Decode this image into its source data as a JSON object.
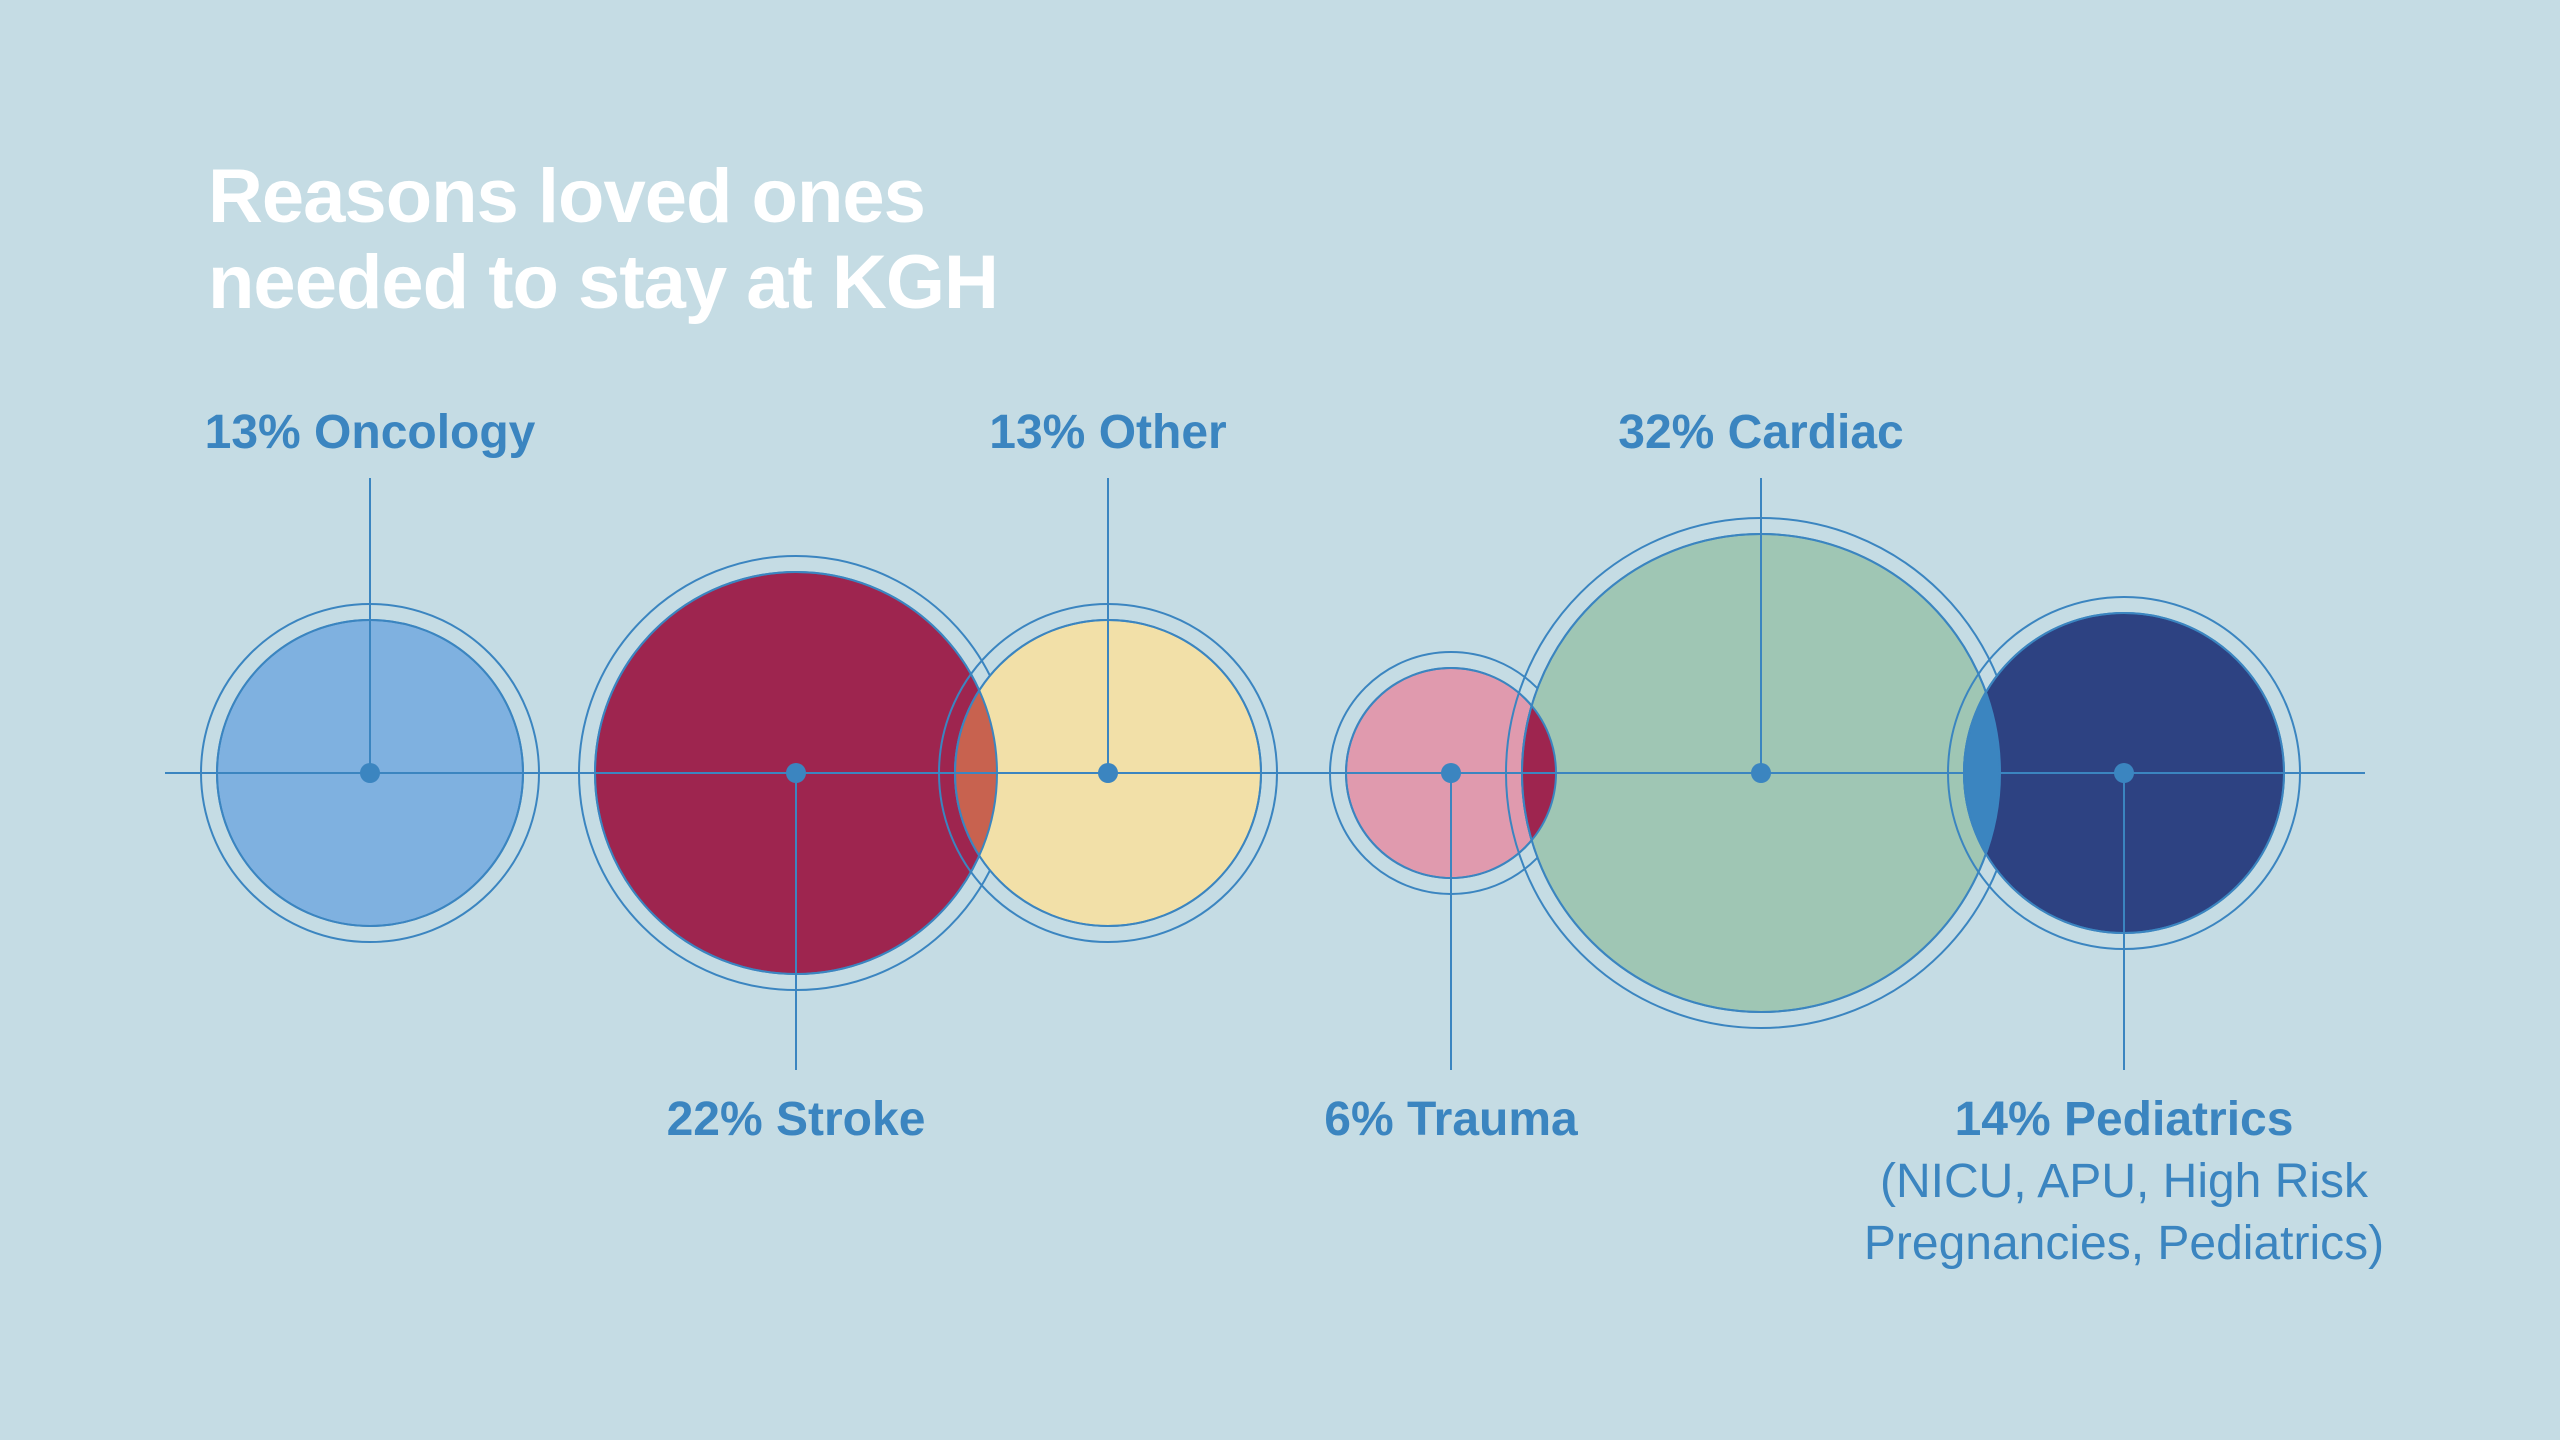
{
  "chart_data": {
    "type": "bubble",
    "title_lines": [
      "Reasons loved ones",
      "needed to stay at KGH"
    ],
    "unit": "%",
    "categories": [
      {
        "name": "Oncology",
        "value": 13,
        "label": "13% Oncology",
        "color": "#7fb1e0",
        "label_side": "top",
        "sublabel": []
      },
      {
        "name": "Stroke",
        "value": 22,
        "label": "22% Stroke",
        "color": "#9e254f",
        "label_side": "bottom",
        "sublabel": []
      },
      {
        "name": "Other",
        "value": 13,
        "label": "13% Other",
        "color": "#f2e0a8",
        "label_side": "top",
        "sublabel": []
      },
      {
        "name": "Trauma",
        "value": 6,
        "label": "6% Trauma",
        "color": "#e09aae",
        "label_side": "bottom",
        "sublabel": []
      },
      {
        "name": "Cardiac",
        "value": 32,
        "label": "32% Cardiac",
        "color": "#9fc6b4",
        "label_side": "top",
        "sublabel": []
      },
      {
        "name": "Pediatrics",
        "value": 14,
        "label": "14% Pediatrics",
        "color": "#2d4282",
        "label_side": "bottom",
        "sublabel": [
          "(NICU, APU, High Risk",
          "Pregnancies, Pediatrics)"
        ]
      }
    ],
    "overlap_colors": {
      "stroke_other": "#c8624f",
      "trauma_cardiac": "#9e254f",
      "cardiac_pediatrics": "#3b85c0"
    },
    "line_color": "#3b85c0",
    "background": "#c5dce4"
  }
}
